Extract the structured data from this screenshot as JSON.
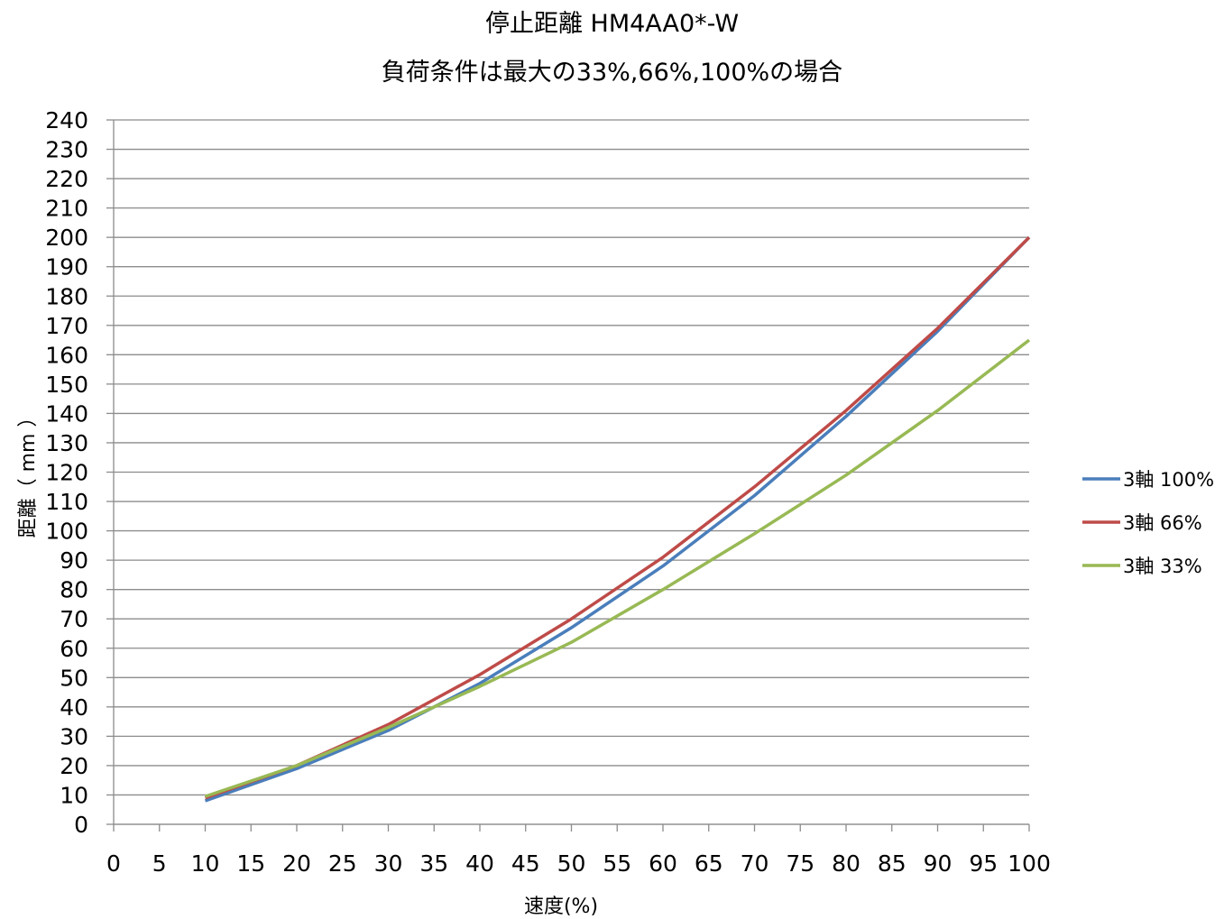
{
  "chart_data": {
    "type": "line",
    "title": "停止距離 HM4AA0*-W",
    "subtitle": "負荷条件は最大の33%,66%,100%の場合",
    "xlabel": "速度(%)",
    "ylabel": "距離（ mm ）",
    "xlim": [
      0,
      100
    ],
    "ylim": [
      0,
      240
    ],
    "x_ticks": [
      0,
      5,
      10,
      15,
      20,
      25,
      30,
      35,
      40,
      45,
      50,
      55,
      60,
      65,
      70,
      75,
      80,
      85,
      90,
      95,
      100
    ],
    "y_ticks": [
      0,
      10,
      20,
      30,
      40,
      50,
      60,
      70,
      80,
      90,
      100,
      110,
      120,
      130,
      140,
      150,
      160,
      170,
      180,
      190,
      200,
      210,
      220,
      230,
      240
    ],
    "grid": true,
    "legend_position": "right",
    "x": [
      10,
      20,
      30,
      40,
      50,
      60,
      70,
      80,
      90,
      100
    ],
    "series": [
      {
        "name": "3軸 100%",
        "color": "#4A7EBB",
        "values": [
          8,
          19,
          32,
          48,
          67,
          88,
          112,
          139,
          168,
          200
        ]
      },
      {
        "name": "3軸 66%",
        "color": "#BE4B48",
        "values": [
          9,
          20,
          34,
          51,
          70,
          91,
          115,
          141,
          169,
          200
        ]
      },
      {
        "name": "3軸 33%",
        "color": "#98B954",
        "values": [
          9.5,
          20,
          33,
          47,
          62,
          80,
          99,
          119,
          141,
          165
        ]
      }
    ]
  }
}
